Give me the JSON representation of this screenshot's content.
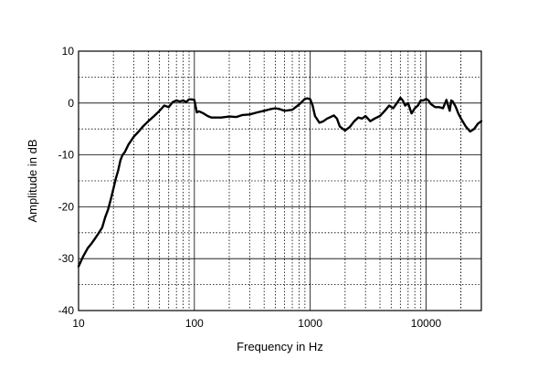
{
  "chart_data": {
    "type": "line",
    "title": "",
    "xlabel": "Frequency in Hz",
    "ylabel": "Amplitude in dB",
    "x_scale": "log",
    "xlim": [
      10,
      30000
    ],
    "ylim": [
      -40,
      10
    ],
    "x_ticks": [
      10,
      100,
      1000,
      10000
    ],
    "x_tick_labels": [
      "10",
      "100",
      "1000",
      "10000"
    ],
    "y_ticks": [
      10,
      0,
      -10,
      -20,
      -30,
      -40
    ],
    "y_tick_labels": [
      "10",
      "0",
      "-10",
      "-20",
      "-30",
      "-40"
    ],
    "grid": true,
    "legend": "none",
    "line_color": "#000000",
    "series": [
      {
        "x": [
          10,
          11,
          12,
          13,
          14,
          15,
          16,
          17,
          18,
          19,
          20,
          21,
          22,
          23,
          24,
          25,
          27,
          30,
          33,
          36,
          40,
          45,
          50,
          55,
          60,
          65,
          70,
          75,
          80,
          85,
          90,
          95,
          100,
          105,
          110,
          120,
          130,
          140,
          150,
          170,
          200,
          230,
          260,
          300,
          350,
          400,
          450,
          500,
          550,
          600,
          700,
          800,
          900,
          950,
          1000,
          1050,
          1100,
          1200,
          1300,
          1400,
          1500,
          1600,
          1700,
          1800,
          2000,
          2200,
          2400,
          2600,
          2800,
          3000,
          3300,
          3600,
          4000,
          4400,
          4800,
          5200,
          5600,
          6000,
          6300,
          6600,
          7000,
          7500,
          8000,
          8500,
          9000,
          9500,
          10000,
          10500,
          11000,
          12000,
          13000,
          14000,
          15000,
          16000,
          16500,
          17000,
          18000,
          19000,
          20000,
          22000,
          24000,
          26000,
          28000,
          30000
        ],
        "y": [
          -31.5,
          -29.5,
          -28,
          -27,
          -26,
          -25,
          -24,
          -22,
          -20.5,
          -18.5,
          -16.5,
          -14.5,
          -13,
          -11,
          -10,
          -9.5,
          -8,
          -6.5,
          -5.5,
          -4.5,
          -3.5,
          -2.5,
          -1.5,
          -0.5,
          -0.8,
          0.2,
          0.5,
          0.3,
          0.5,
          0.2,
          0.7,
          0.7,
          0.6,
          -1.8,
          -1.6,
          -2,
          -2.5,
          -2.8,
          -2.8,
          -2.8,
          -2.6,
          -2.7,
          -2.3,
          -2.2,
          -1.8,
          -1.5,
          -1.2,
          -1.0,
          -1.2,
          -1.5,
          -1.3,
          -0.3,
          0.8,
          0.9,
          0.7,
          -0.5,
          -2.5,
          -3.8,
          -3.5,
          -3.0,
          -2.7,
          -2.4,
          -3.0,
          -4.5,
          -5.3,
          -4.6,
          -3.5,
          -2.8,
          -3.0,
          -2.5,
          -3.5,
          -3.0,
          -2.5,
          -1.5,
          -0.5,
          -1.0,
          0.0,
          1.0,
          0.5,
          -0.5,
          0.0,
          -2.0,
          -1.0,
          -0.5,
          0.5,
          0.5,
          0.8,
          0.5,
          -0.2,
          -0.8,
          -0.8,
          -1.0,
          0.6,
          -1.5,
          0.5,
          0.3,
          -0.7,
          -2.0,
          -3.0,
          -4.5,
          -5.5,
          -5.0,
          -4.0,
          -3.5
        ]
      }
    ]
  }
}
